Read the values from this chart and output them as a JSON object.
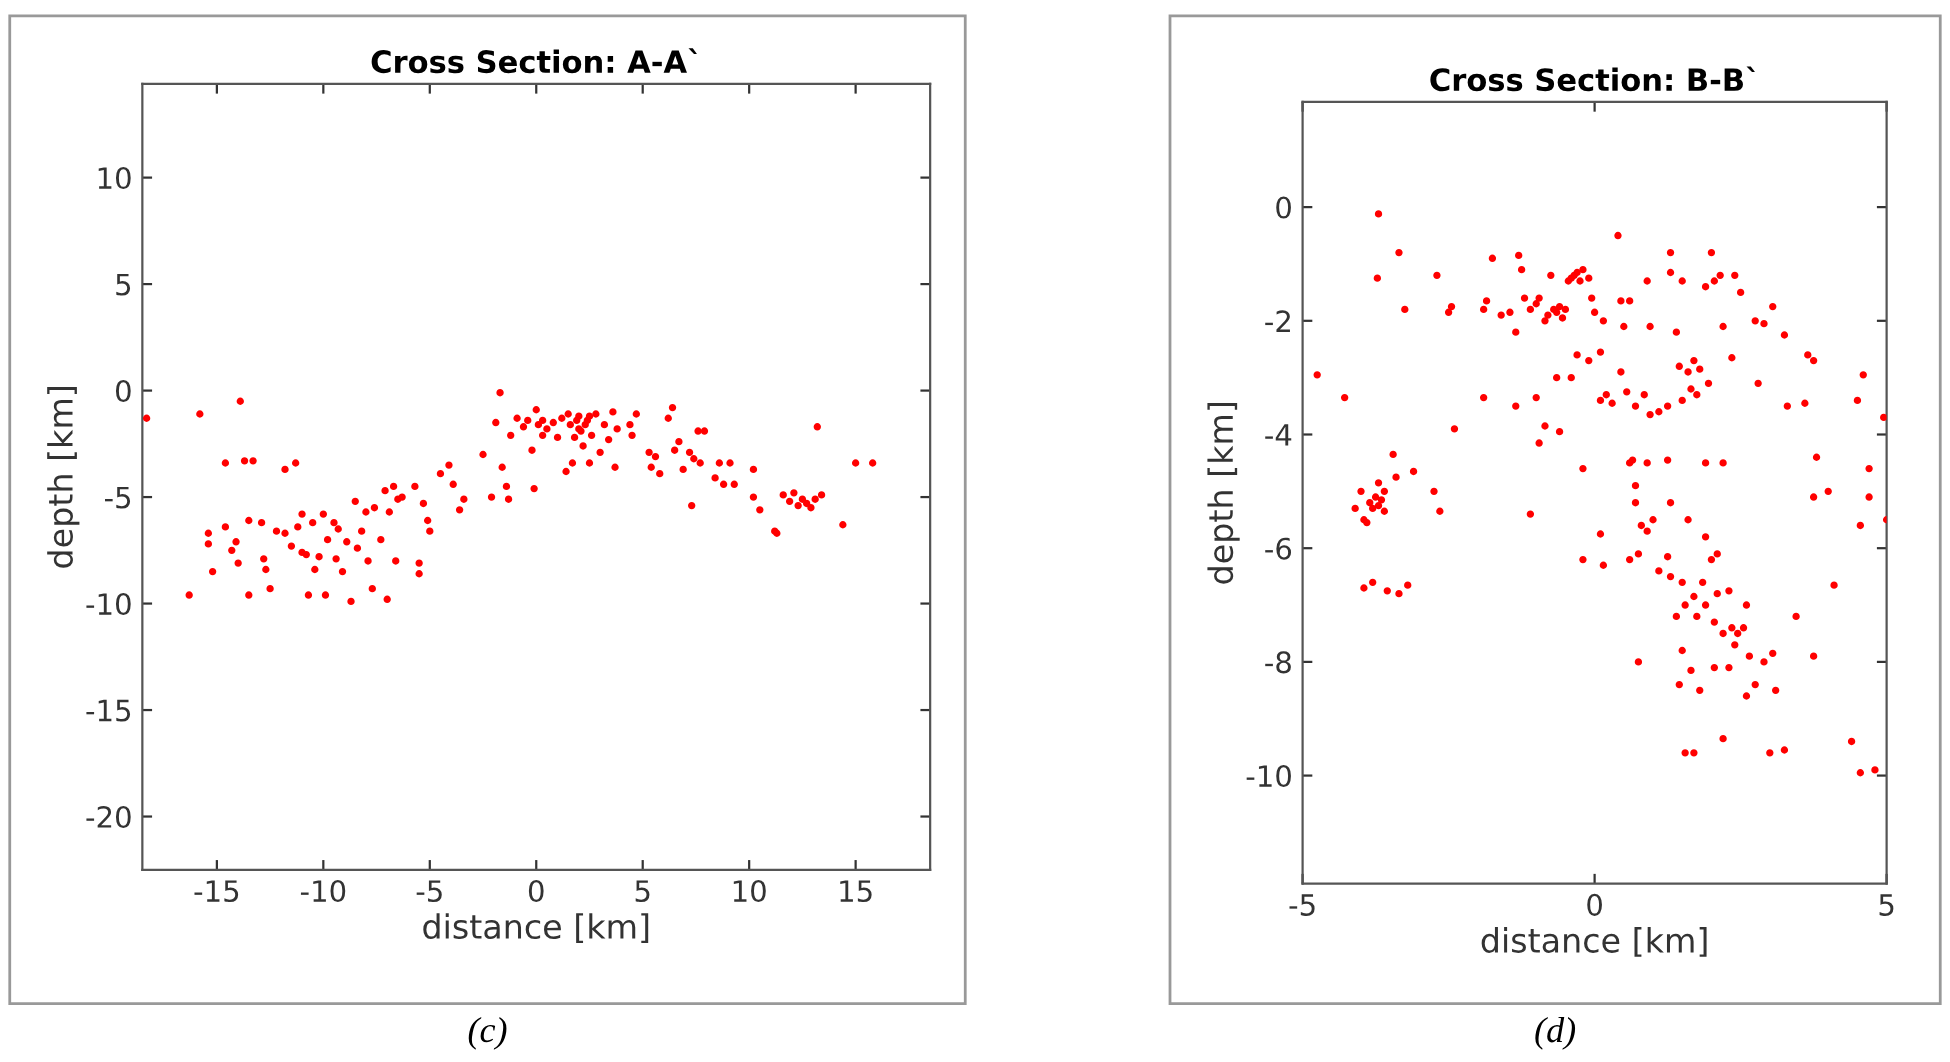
{
  "chart_data": [
    {
      "type": "scatter",
      "title": "Cross Section: A-A`",
      "xlabel": "distance [km]",
      "ylabel": "depth [km]",
      "xlim": [
        -18.5,
        18.5
      ],
      "ylim": [
        -22.5,
        14.4
      ],
      "xticks": [
        -15,
        -10,
        -5,
        0,
        5,
        10,
        15
      ],
      "yticks": [
        -20,
        -15,
        -10,
        -5,
        0,
        5,
        10
      ],
      "grid": false,
      "marker": "circle",
      "annotations": [
        "(c)"
      ],
      "series": [
        {
          "color": "#ff0000",
          "x": [
            -18.3,
            -15.8,
            -13.9,
            -14.6,
            -13.7,
            -13.3,
            -11.8,
            -11.3,
            -16.3,
            -15.4,
            -15.4,
            -15.2,
            -14.6,
            -14.3,
            -14.1,
            -14,
            -13.5,
            -13.5,
            -12.9,
            -12.8,
            -12.7,
            -12.5,
            -12.2,
            -11.8,
            -11.5,
            -11.2,
            -11,
            -11,
            -10.8,
            -10.7,
            -10.5,
            -10.4,
            -10.2,
            -10,
            -9.9,
            -9.8,
            -9.5,
            -9.4,
            -9.3,
            -9.1,
            -8.9,
            -8.7,
            -8.5,
            -8.4,
            -8.2,
            -8,
            -7.9,
            -7.7,
            -7.6,
            -7.3,
            -7.1,
            -7,
            -6.9,
            -6.7,
            -6.6,
            -6.5,
            -6.3,
            -5.7,
            -5.5,
            -5.5,
            -5.3,
            -5.1,
            -5,
            -4.5,
            -4.1,
            -3.9,
            -3.6,
            -3.4,
            -2.5,
            -2.1,
            -1.9,
            -1.7,
            -1.6,
            -1.4,
            -1.3,
            -1.2,
            -0.9,
            -0.6,
            -0.4,
            -0.2,
            -0.1,
            0,
            0.1,
            0.3,
            0.5,
            0.8,
            1,
            1.2,
            1.4,
            1.6,
            1.7,
            1.8,
            2,
            2.1,
            2.2,
            2.4,
            2.5,
            2.6,
            2.8,
            3,
            3.2,
            3.4,
            3.6,
            3.7,
            3.8,
            4.4,
            4.5,
            4.7,
            5.3,
            5.4,
            5.6,
            5.8,
            6.2,
            6.4,
            6.5,
            6.7,
            6.9,
            7.2,
            7.3,
            7.4,
            7.6,
            7.7,
            7.9,
            8.4,
            8.6,
            8.8,
            9.1,
            9.3,
            10.2,
            10.2,
            10.5,
            11.2,
            11.3,
            11.6,
            11.9,
            12.1,
            12.3,
            12.5,
            12.7,
            12.9,
            13.1,
            13.2,
            13.4,
            14.4,
            15,
            15.8,
            1.9,
            2.3,
            2.0,
            2.5,
            1.5,
            0.3
          ],
          "values": [
            -1.3,
            -1.1,
            -0.5,
            -3.4,
            -3.3,
            -3.3,
            -3.7,
            -3.4,
            -9.6,
            -7.2,
            -6.7,
            -8.5,
            -6.4,
            -7.5,
            -7.1,
            -8.1,
            -6.1,
            -9.6,
            -6.2,
            -7.9,
            -8.4,
            -9.3,
            -6.6,
            -6.7,
            -7.3,
            -6.4,
            -5.8,
            -7.6,
            -7.7,
            -9.6,
            -6.2,
            -8.4,
            -7.8,
            -5.8,
            -9.6,
            -7,
            -6.2,
            -7.9,
            -6.5,
            -8.5,
            -7.1,
            -9.9,
            -5.2,
            -7.4,
            -6.6,
            -5.7,
            -8,
            -9.3,
            -5.5,
            -7,
            -4.7,
            -9.8,
            -5.7,
            -4.5,
            -8,
            -5.1,
            -5,
            -4.5,
            -8.1,
            -8.6,
            -5.3,
            -6.1,
            -6.6,
            -3.9,
            -3.5,
            -4.4,
            -5.6,
            -5.1,
            -3,
            -5,
            -1.5,
            -0.1,
            -3.6,
            -4.5,
            -5.1,
            -2.1,
            -1.3,
            -1.7,
            -1.4,
            -2.8,
            -4.6,
            -0.9,
            -1.6,
            -2.1,
            -1.8,
            -1.5,
            -2.2,
            -1.3,
            -3.8,
            -1.6,
            -3.4,
            -2.2,
            -1.2,
            -1.9,
            -2.6,
            -1.4,
            -3.4,
            -2.1,
            -1.1,
            -2.9,
            -1.6,
            -2.3,
            -1,
            -3.6,
            -1.8,
            -1.6,
            -2.1,
            -1.1,
            -2.9,
            -3.6,
            -3.1,
            -3.9,
            -1.3,
            -0.8,
            -2.8,
            -2.4,
            -3.7,
            -2.9,
            -5.4,
            -3.2,
            -1.9,
            -3.4,
            -1.9,
            -4.1,
            -3.4,
            -4.4,
            -3.4,
            -4.4,
            -3.7,
            -5,
            -5.6,
            -6.6,
            -6.7,
            -4.9,
            -5.2,
            -4.8,
            -5.4,
            -5.1,
            -5.3,
            -5.5,
            -5.1,
            -1.7,
            -4.9,
            -6.3,
            -3.4,
            -3.4,
            -1.4,
            -1.6,
            -1.8,
            -1.2,
            -1.1,
            -1.4
          ]
        }
      ]
    },
    {
      "type": "scatter",
      "title": "Cross Section: B-B`",
      "xlabel": "distance [km]",
      "ylabel": "depth [km]",
      "xlim": [
        -5,
        5
      ],
      "ylim": [
        -11.9,
        1.85
      ],
      "xticks": [
        -5,
        0,
        5
      ],
      "yticks": [
        -10,
        -8,
        -6,
        -4,
        -2,
        0
      ],
      "grid": false,
      "marker": "circle",
      "annotations": [
        "(d)"
      ],
      "series": [
        {
          "color": "#ff0000",
          "x": [
            -4.75,
            -4.28,
            -3.7,
            -3.72,
            -3.35,
            -3.25,
            -2.7,
            -2.5,
            -2.45,
            -2.4,
            -3.45,
            -3.4,
            -3.1,
            -2.75,
            -2.65,
            -4.1,
            -4.0,
            -3.95,
            -3.85,
            -3.8,
            -3.75,
            -3.7,
            -3.65,
            -3.6,
            -3.7,
            -3.9,
            -3.6,
            -3.95,
            -3.8,
            -3.55,
            -3.35,
            -3.2,
            -1.75,
            -1.3,
            -1.25,
            -1.9,
            -1.85,
            -1.6,
            -1.45,
            -1.35,
            -1.2,
            -1.1,
            -1.0,
            -0.95,
            -0.85,
            -0.8,
            -0.75,
            -0.7,
            -0.65,
            -0.6,
            -0.55,
            -0.5,
            -0.45,
            -0.4,
            -0.35,
            -0.3,
            -0.25,
            -0.2,
            -0.1,
            -0.05,
            0,
            0.15,
            0.4,
            0.45,
            0.6,
            -1.9,
            -1.35,
            -1.0,
            -0.95,
            -0.85,
            -0.65,
            -0.6,
            -0.4,
            -0.3,
            -0.2,
            -0.1,
            0.1,
            0.1,
            0.2,
            0.3,
            0.45,
            0.5,
            0.55,
            0.65,
            0.7,
            0.85,
            0.9,
            0.95,
            0.95,
            1.1,
            1.25,
            1.3,
            1.3,
            1.4,
            1.45,
            1.5,
            1.5,
            1.6,
            1.65,
            1.7,
            1.75,
            1.8,
            1.9,
            1.95,
            2.0,
            2.05,
            2.15,
            2.2,
            2.35,
            2.4,
            2.5,
            2.75,
            2.9,
            3.05,
            2.8,
            3.25,
            3.3,
            3.6,
            3.65,
            3.75,
            3.8,
            3.75,
            4.0,
            4.1,
            4.5,
            4.55,
            4.6,
            4.7,
            4.7,
            4.95,
            5.0,
            0.6,
            0.9,
            1.25,
            1.9,
            2.2,
            -1.1,
            0.1,
            0.15,
            -0.2,
            0.7,
            0.8,
            0.9,
            1.0,
            0.7,
            1.3,
            1.6,
            1.9,
            2.0,
            2.1,
            0.6,
            0.75,
            1.1,
            1.3,
            1.25,
            1.5,
            1.55,
            1.4,
            1.7,
            1.75,
            1.85,
            1.9,
            2.05,
            2.1,
            2.2,
            2.3,
            2.35,
            2.4,
            2.45,
            2.55,
            2.6,
            2.65,
            2.3,
            2.05,
            1.8,
            1.65,
            1.45,
            1.5,
            0.75,
            2.6,
            2.75,
            2.9,
            3.05,
            3.1,
            3.45,
            3.75,
            2.2,
            1.55,
            1.7,
            3.0,
            3.25,
            4.4,
            4.55,
            4.8
          ],
          "values": [
            -2.95,
            -3.35,
            -0.12,
            -1.25,
            -0.8,
            -1.8,
            -1.2,
            -1.85,
            -1.75,
            -3.9,
            -4.35,
            -4.75,
            -4.65,
            -5,
            -5.35,
            -5.3,
            -5.0,
            -5.5,
            -5.2,
            -5.3,
            -5.1,
            -5.25,
            -5.15,
            -5.35,
            -4.85,
            -5.55,
            -5.0,
            -6.7,
            -6.6,
            -6.75,
            -6.8,
            -6.65,
            -0.9,
            -0.85,
            -1.1,
            -1.8,
            -1.65,
            -1.9,
            -1.85,
            -2.2,
            -1.6,
            -1.8,
            -1.7,
            -1.6,
            -2.0,
            -1.9,
            -1.2,
            -1.8,
            -1.85,
            -1.75,
            -1.95,
            -1.8,
            -1.3,
            -1.25,
            -1.2,
            -1.15,
            -1.3,
            -1.1,
            -1.25,
            -1.6,
            -1.85,
            -2.0,
            -0.5,
            -1.65,
            -1.65,
            -3.35,
            -3.5,
            -3.35,
            -4.15,
            -3.85,
            -3.0,
            -3.95,
            -3.0,
            -2.6,
            -4.6,
            -2.7,
            -2.55,
            -3.4,
            -3.3,
            -3.45,
            -2.9,
            -2.1,
            -3.25,
            -4.45,
            -3.5,
            -3.3,
            -1.3,
            -2.1,
            -3.65,
            -3.6,
            -3.5,
            -0.8,
            -1.15,
            -2.2,
            -2.8,
            -1.3,
            -3.4,
            -2.9,
            -3.2,
            -2.7,
            -3.3,
            -2.85,
            -1.4,
            -3.1,
            -0.8,
            -1.3,
            -1.2,
            -2.1,
            -2.65,
            -1.2,
            -1.5,
            -2,
            -2.05,
            -1.75,
            -3.1,
            -2.25,
            -3.5,
            -3.45,
            -2.6,
            -2.7,
            -4.4,
            -5.1,
            -5.0,
            -6.65,
            -3.4,
            -5.6,
            -2.95,
            -4.6,
            -5.1,
            -3.7,
            -5.5,
            -4.5,
            -4.5,
            -4.45,
            -4.5,
            -4.5,
            -5.4,
            -5.75,
            -6.3,
            -6.2,
            -5.2,
            -5.6,
            -5.7,
            -5.5,
            -4.9,
            -5.2,
            -5.5,
            -5.8,
            -6.2,
            -6.1,
            -6.2,
            -6.1,
            -6.4,
            -6.5,
            -6.15,
            -6.6,
            -7.0,
            -7.2,
            -6.85,
            -7.2,
            -6.6,
            -7.0,
            -7.3,
            -6.8,
            -7.5,
            -6.75,
            -7.4,
            -7.7,
            -7.5,
            -7.4,
            -7.0,
            -7.9,
            -8.1,
            -8.1,
            -8.5,
            -8.15,
            -8.4,
            -7.8,
            -8.0,
            -8.6,
            -8.4,
            -8.0,
            -7.85,
            -8.5,
            -7.2,
            -7.9,
            -9.35,
            -9.6,
            -9.6,
            -9.6,
            -9.55,
            -9.4,
            -9.95,
            -9.9
          ]
        }
      ]
    }
  ]
}
